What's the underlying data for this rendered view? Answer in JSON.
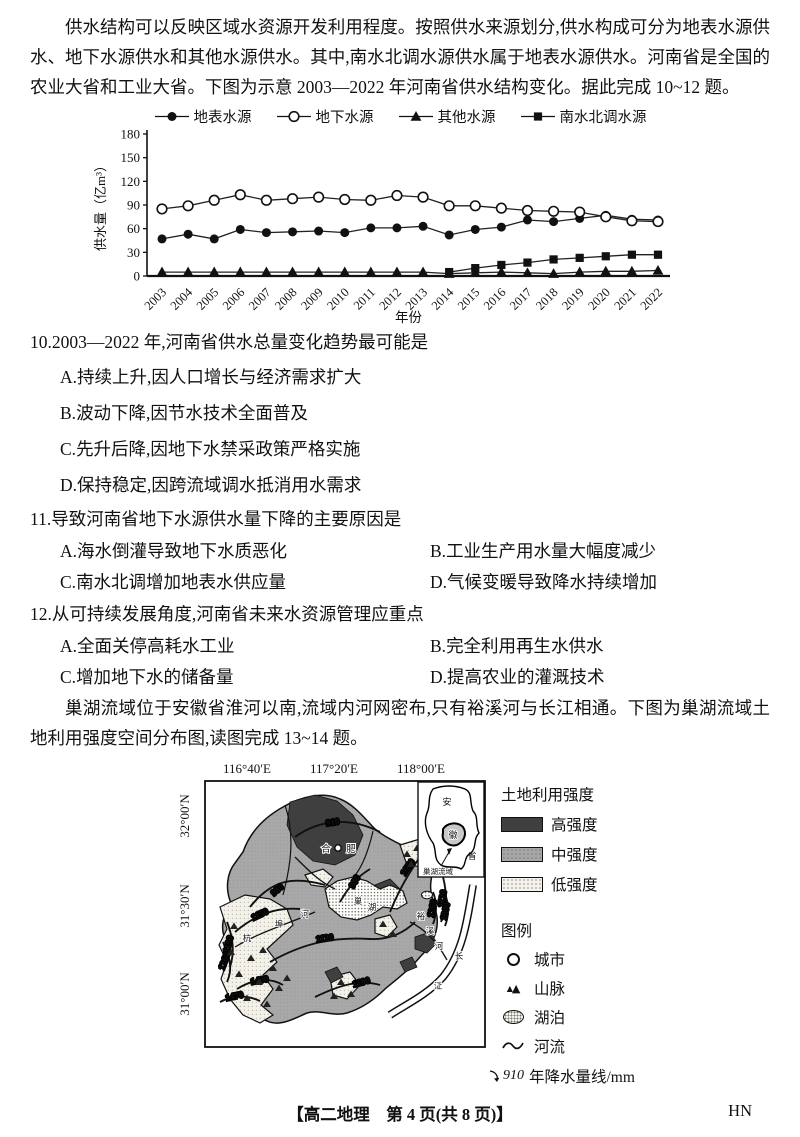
{
  "intro1": "供水结构可以反映区域水资源开发利用程度。按照供水来源划分,供水构成可分为地表水源供水、地下水源供水和其他水源供水。其中,南水北调水源供水属于地表水源供水。河南省是全国的农业大省和工业大省。下图为示意 2003—2022 年河南省供水结构变化。据此完成 10~12 题。",
  "intro2": "巢湖流域位于安徽省淮河以南,流域内河网密布,只有裕溪河与长江相通。下图为巢湖流域土地利用强度空间分布图,读图完成 13~14 题。",
  "chart_data": {
    "type": "line",
    "title": "",
    "xlabel": "年份",
    "ylabel": "供水量（亿m³）",
    "ylim": [
      0,
      180
    ],
    "yticks": [
      0,
      30,
      60,
      90,
      120,
      150,
      180
    ],
    "legend_position": "top",
    "grid": false,
    "categories": [
      "2003",
      "2004",
      "2005",
      "2006",
      "2007",
      "2008",
      "2009",
      "2010",
      "2011",
      "2012",
      "2013",
      "2014",
      "2015",
      "2016",
      "2017",
      "2018",
      "2019",
      "2020",
      "2021",
      "2022"
    ],
    "series": [
      {
        "name": "地表水源",
        "marker": "filled-circle",
        "values": [
          47,
          53,
          47,
          59,
          55,
          56,
          57,
          55,
          61,
          61,
          63,
          52,
          59,
          62,
          71,
          69,
          73,
          77,
          72,
          71
        ]
      },
      {
        "name": "地下水源",
        "marker": "open-circle",
        "values": [
          85,
          89,
          96,
          103,
          96,
          98,
          100,
          97,
          96,
          102,
          100,
          89,
          89,
          86,
          83,
          82,
          81,
          75,
          70,
          69
        ]
      },
      {
        "name": "其他水源",
        "marker": "filled-triangle",
        "values": [
          5,
          5,
          5,
          5,
          5,
          5,
          5,
          5,
          5,
          5,
          5,
          3,
          4,
          5,
          4,
          3,
          5,
          6,
          6,
          7
        ]
      },
      {
        "name": "南水北调水源",
        "marker": "filled-square",
        "values": [
          null,
          null,
          null,
          null,
          null,
          null,
          null,
          null,
          null,
          null,
          null,
          5,
          10,
          14,
          17,
          21,
          23,
          25,
          27,
          27
        ]
      }
    ]
  },
  "questions": [
    {
      "number": "10.",
      "stem": "2003—2022 年,河南省供水总量变化趋势最可能是",
      "options": [
        {
          "label": "A.",
          "text": "持续上升,因人口增长与经济需求扩大"
        },
        {
          "label": "B.",
          "text": "波动下降,因节水技术全面普及"
        },
        {
          "label": "C.",
          "text": "先升后降,因地下水禁采政策严格实施"
        },
        {
          "label": "D.",
          "text": "保持稳定,因跨流域调水抵消用水需求"
        }
      ]
    },
    {
      "number": "11.",
      "stem": "导致河南省地下水源供水量下降的主要原因是",
      "options": [
        {
          "label": "A.",
          "text": "海水倒灌导致地下水质恶化"
        },
        {
          "label": "B.",
          "text": "工业生产用水量大幅度减少"
        },
        {
          "label": "C.",
          "text": "南水北调增加地表水供应量"
        },
        {
          "label": "D.",
          "text": "气候变暖导致降水持续增加"
        }
      ]
    },
    {
      "number": "12.",
      "stem": "从可持续发展角度,河南省未来水资源管理应重点",
      "options": [
        {
          "label": "A.",
          "text": "全面关停高耗水工业"
        },
        {
          "label": "B.",
          "text": "完全利用再生水供水"
        },
        {
          "label": "C.",
          "text": "增加地下水的储备量"
        },
        {
          "label": "D.",
          "text": "提高农业的灌溉技术"
        }
      ]
    }
  ],
  "map": {
    "lon_labels": [
      "116°40′E",
      "117°20′E",
      "118°00′E"
    ],
    "lat_labels": [
      "32°00′N",
      "31°30′N",
      "31°00′N"
    ],
    "city_chars": [
      "合",
      "肥"
    ],
    "lake_chars": [
      "巢",
      "湖"
    ],
    "hangbu_chars": [
      "杭",
      "埠",
      "河"
    ],
    "yuxi_chars": [
      "裕",
      "溪",
      "河"
    ],
    "changjiang_chars": [
      "长",
      "江"
    ],
    "isoline_labels": [
      "910",
      "980",
      "980",
      "1050",
      "1120",
      "1120",
      "1150",
      "1190",
      "1190",
      "1260",
      "1260",
      "1300",
      "1400",
      "1470"
    ],
    "inset_chars": [
      "安",
      "徽",
      "省"
    ],
    "inset_caption": "巢湖流域",
    "intensity_title": "土地利用强度",
    "intensity_items": [
      "高强度",
      "中强度",
      "低强度"
    ],
    "legend_title": "图例",
    "legend_city": "城市",
    "legend_mountain": "山脉",
    "legend_lake": "湖泊",
    "legend_river": "河流",
    "precip_value": "910",
    "precip_label": "年降水量线/mm"
  },
  "footer": {
    "center": "【高二地理　第 4 页(共 8 页)】",
    "right": "HN"
  }
}
